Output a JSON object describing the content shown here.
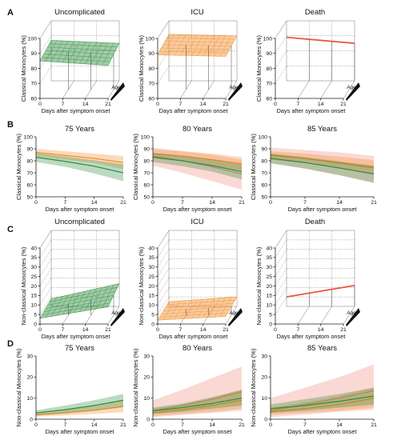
{
  "panel_labels": [
    "A",
    "B",
    "C",
    "D"
  ],
  "chart_data": [
    {
      "panel": "A",
      "type": "area3d",
      "title": "Uncomplicated",
      "xlabel": "Days after symptom onset",
      "ylabel": "Classical Monocytes (%)",
      "zlabel": "Age",
      "xticks": [
        "0",
        "7",
        "14",
        "21"
      ],
      "yticks": [
        "60",
        "70",
        "80",
        "90",
        "100"
      ],
      "ylim": [
        60,
        100
      ],
      "surface": {
        "day0": [
          85,
          87
        ],
        "day21": [
          82,
          85
        ],
        "color": "#2e8b3e"
      }
    },
    {
      "panel": "A",
      "type": "area3d",
      "title": "ICU",
      "xlabel": "Days after symptom onset",
      "ylabel": "Classical Monocytes (%)",
      "zlabel": "Age",
      "xticks": [
        "0",
        "7",
        "14",
        "21"
      ],
      "yticks": [
        "60",
        "70",
        "80",
        "90",
        "100"
      ],
      "ylim": [
        60,
        100
      ],
      "surface": {
        "day0": [
          89,
          91
        ],
        "day21": [
          88,
          90
        ],
        "color": "#f28c28"
      }
    },
    {
      "panel": "A",
      "type": "area3d",
      "title": "Death",
      "xlabel": "Days after symptom onset",
      "ylabel": "Classical Monocytes (%)",
      "zlabel": "Age",
      "xticks": [
        "0",
        "7",
        "14",
        "21"
      ],
      "yticks": [
        "60",
        "70",
        "80",
        "90",
        "100"
      ],
      "ylim": [
        60,
        100
      ],
      "surface": {
        "day0": [
          89,
          89
        ],
        "day21": [
          85,
          85
        ],
        "color": "#e8573e"
      }
    },
    {
      "panel": "B",
      "type": "line",
      "title": "75 Years",
      "xlabel": "Days after symptom onset",
      "ylabel": "Classical Monocytes (%)",
      "xticks": [
        0,
        7,
        14,
        21
      ],
      "yticks": [
        50,
        60,
        70,
        80,
        90,
        100
      ],
      "xlim": [
        0,
        21
      ],
      "ylim": [
        50,
        100
      ],
      "series": [
        {
          "color": "#f28c28",
          "x": [
            0,
            7,
            14,
            21
          ],
          "mean": [
            87,
            84.5,
            82,
            78.5
          ],
          "lower": [
            84,
            81,
            78,
            73
          ],
          "upper": [
            90,
            88,
            86,
            84
          ]
        },
        {
          "color": "#2e8b3e",
          "x": [
            0,
            7,
            14,
            21
          ],
          "mean": [
            83,
            79.5,
            75.5,
            70
          ],
          "lower": [
            79,
            75,
            69.5,
            63
          ],
          "upper": [
            86.5,
            83.5,
            80.5,
            77
          ]
        }
      ]
    },
    {
      "panel": "B",
      "type": "line",
      "title": "80 Years",
      "xlabel": "Days after symptom onset",
      "ylabel": "Classical Monocytes (%)",
      "xticks": [
        0,
        7,
        14,
        21
      ],
      "yticks": [
        50,
        60,
        70,
        80,
        90,
        100
      ],
      "xlim": [
        0,
        21
      ],
      "ylim": [
        50,
        100
      ],
      "series": [
        {
          "color": "#f08a7a",
          "x": [
            0,
            7,
            14,
            21
          ],
          "mean": [
            84,
            80,
            75,
            69
          ],
          "lower": [
            76,
            70,
            63,
            56
          ],
          "upper": [
            91,
            88,
            85,
            81
          ]
        },
        {
          "color": "#f28c28",
          "x": [
            0,
            7,
            14,
            21
          ],
          "mean": [
            86,
            84,
            81,
            77.5
          ],
          "lower": [
            82,
            79.5,
            76,
            72
          ],
          "upper": [
            89.5,
            88,
            86,
            83
          ]
        },
        {
          "color": "#2e8b3e",
          "x": [
            0,
            7,
            14,
            21
          ],
          "mean": [
            83,
            80,
            76,
            71
          ],
          "lower": [
            79,
            75.5,
            71,
            64.5
          ],
          "upper": [
            86.5,
            84,
            81,
            77
          ]
        }
      ]
    },
    {
      "panel": "B",
      "type": "line",
      "title": "85 Years",
      "xlabel": "Days after symptom onset",
      "ylabel": "Classical Monocytes (%)",
      "xticks": [
        0,
        7,
        14,
        21
      ],
      "yticks": [
        50,
        60,
        70,
        80,
        90,
        100
      ],
      "xlim": [
        0,
        21
      ],
      "ylim": [
        50,
        100
      ],
      "series": [
        {
          "color": "#f08a7a",
          "x": [
            0,
            7,
            14,
            21
          ],
          "mean": [
            85,
            82,
            78,
            74
          ],
          "lower": [
            78,
            73.5,
            68,
            62
          ],
          "upper": [
            91,
            89,
            87,
            84
          ]
        },
        {
          "color": "#f28c28",
          "x": [
            0,
            7,
            14,
            21
          ],
          "mean": [
            84.5,
            82,
            78.5,
            74.5
          ],
          "lower": [
            81,
            78,
            74,
            69
          ],
          "upper": [
            88,
            86,
            83.5,
            80.5
          ]
        },
        {
          "color": "#2e8b3e",
          "x": [
            0,
            7,
            14,
            21
          ],
          "mean": [
            82,
            78.5,
            74,
            69
          ],
          "lower": [
            78,
            73.5,
            68,
            61.5
          ],
          "upper": [
            86,
            83,
            79.5,
            76
          ]
        }
      ]
    },
    {
      "panel": "C",
      "type": "area3d",
      "title": "Uncomplicated",
      "xlabel": "Days after symptom onset",
      "ylabel": "Non-classical Monocytes (%)",
      "zlabel": "Age",
      "xticks": [
        "0",
        "7",
        "14",
        "21"
      ],
      "yticks": [
        "0",
        "5",
        "10",
        "15",
        "20",
        "25",
        "30",
        "35",
        "40"
      ],
      "ylim": [
        0,
        40
      ],
      "surface": {
        "day0": [
          3,
          4
        ],
        "day21": [
          9,
          12
        ],
        "color": "#2e8b3e"
      }
    },
    {
      "panel": "C",
      "type": "area3d",
      "title": "ICU",
      "xlabel": "Days after symptom onset",
      "ylabel": "Non-classical Monocytes (%)",
      "zlabel": "Age",
      "xticks": [
        "0",
        "7",
        "14",
        "21"
      ],
      "yticks": [
        "0",
        "5",
        "10",
        "15",
        "20",
        "25",
        "30",
        "35",
        "40"
      ],
      "ylim": [
        0,
        40
      ],
      "surface": {
        "day0": [
          2,
          2.5
        ],
        "day21": [
          4,
          5
        ],
        "color": "#f28c28"
      }
    },
    {
      "panel": "C",
      "type": "area3d",
      "title": "Death",
      "xlabel": "Days after symptom onset",
      "ylabel": "Non-classical Monocytes (%)",
      "zlabel": "Age",
      "xticks": [
        "0",
        "7",
        "14",
        "21"
      ],
      "yticks": [
        "0",
        "5",
        "10",
        "15",
        "20",
        "25",
        "30",
        "35",
        "40"
      ],
      "ylim": [
        0,
        40
      ],
      "surface": {
        "day0": [
          5,
          5
        ],
        "day21": [
          11,
          11
        ],
        "color": "#e8573e"
      }
    },
    {
      "panel": "D",
      "type": "line",
      "title": "75 Years",
      "xlabel": "Days after symptom onset",
      "ylabel": "Non-classical Monocytes (%)",
      "xticks": [
        0,
        7,
        14,
        21
      ],
      "yticks": [
        0,
        10,
        20,
        30
      ],
      "xlim": [
        0,
        21
      ],
      "ylim": [
        0,
        30
      ],
      "series": [
        {
          "color": "#f28c28",
          "x": [
            0,
            7,
            14,
            21
          ],
          "mean": [
            2,
            3,
            4.2,
            6
          ],
          "lower": [
            1.2,
            1.8,
            2.5,
            3.3
          ],
          "upper": [
            3,
            4.5,
            6.5,
            9
          ]
        },
        {
          "color": "#2e8b3e",
          "x": [
            0,
            7,
            14,
            21
          ],
          "mean": [
            3,
            4.5,
            6.5,
            9
          ],
          "lower": [
            2,
            3,
            4.3,
            6
          ],
          "upper": [
            4.2,
            6.5,
            9,
            12
          ]
        }
      ]
    },
    {
      "panel": "D",
      "type": "line",
      "title": "80 Years",
      "xlabel": "Days after symptom onset",
      "ylabel": "Non-classical Monocytes (%)",
      "xticks": [
        0,
        7,
        14,
        21
      ],
      "yticks": [
        0,
        10,
        20,
        30
      ],
      "xlim": [
        0,
        21
      ],
      "ylim": [
        0,
        30
      ],
      "series": [
        {
          "color": "#f08a7a",
          "x": [
            0,
            7,
            14,
            21
          ],
          "mean": [
            4,
            6.5,
            9.5,
            13
          ],
          "lower": [
            1,
            2,
            3,
            4
          ],
          "upper": [
            9,
            14,
            19.5,
            25
          ]
        },
        {
          "color": "#f28c28",
          "x": [
            0,
            7,
            14,
            21
          ],
          "mean": [
            3,
            4.5,
            6.5,
            9
          ],
          "lower": [
            1.5,
            2.5,
            3.5,
            5
          ],
          "upper": [
            5,
            7,
            10,
            14
          ]
        },
        {
          "color": "#2e8b3e",
          "x": [
            0,
            7,
            14,
            21
          ],
          "mean": [
            4,
            5.5,
            7.5,
            10
          ],
          "lower": [
            2.5,
            3.5,
            5,
            6.5
          ],
          "upper": [
            5.5,
            7.5,
            10.5,
            14
          ]
        }
      ]
    },
    {
      "panel": "D",
      "type": "line",
      "title": "85 Years",
      "xlabel": "Days after symptom onset",
      "ylabel": "Non-classical Monocytes (%)",
      "xticks": [
        0,
        7,
        14,
        21
      ],
      "yticks": [
        0,
        10,
        20,
        30
      ],
      "xlim": [
        0,
        21
      ],
      "ylim": [
        0,
        30
      ],
      "series": [
        {
          "color": "#f08a7a",
          "x": [
            0,
            7,
            14,
            21
          ],
          "mean": [
            4,
            7,
            10,
            13.5
          ],
          "lower": [
            1,
            2.2,
            3.5,
            4.5
          ],
          "upper": [
            10,
            15,
            20,
            26
          ]
        },
        {
          "color": "#f28c28",
          "x": [
            0,
            7,
            14,
            21
          ],
          "mean": [
            3.5,
            5,
            7,
            10
          ],
          "lower": [
            2,
            3,
            4,
            5.5
          ],
          "upper": [
            5.5,
            8,
            11,
            15
          ]
        },
        {
          "color": "#2e8b3e",
          "x": [
            0,
            7,
            14,
            21
          ],
          "mean": [
            5,
            6.5,
            8.5,
            11
          ],
          "lower": [
            3,
            4,
            5.5,
            7
          ],
          "upper": [
            7,
            9.5,
            12,
            15
          ]
        }
      ]
    }
  ]
}
